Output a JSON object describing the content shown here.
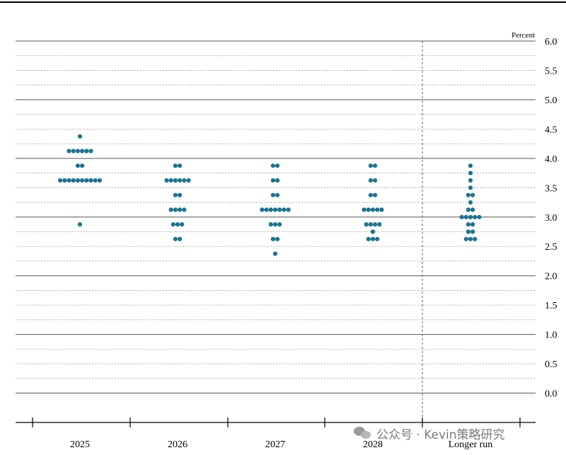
{
  "chart_data": {
    "type": "scatter",
    "unit_label": "Percent",
    "categories": [
      "2025",
      "2026",
      "2027",
      "2028",
      "Longer run"
    ],
    "ylim": [
      -0.5,
      6.0
    ],
    "yticks": [
      "6.0",
      "5.5",
      "5.0",
      "4.5",
      "4.0",
      "3.5",
      "3.0",
      "2.5",
      "2.0",
      "1.5",
      "1.0",
      "0.5",
      "0.0"
    ],
    "dots": [
      [
        [
          4.375,
          1
        ],
        [
          4.125,
          6
        ],
        [
          3.875,
          2
        ],
        [
          3.625,
          10
        ],
        [
          2.875,
          1
        ]
      ],
      [
        [
          3.875,
          2
        ],
        [
          3.625,
          6
        ],
        [
          3.375,
          2
        ],
        [
          3.125,
          4
        ],
        [
          2.875,
          3
        ],
        [
          2.625,
          2
        ]
      ],
      [
        [
          3.875,
          2
        ],
        [
          3.625,
          2
        ],
        [
          3.375,
          2
        ],
        [
          3.125,
          7
        ],
        [
          2.875,
          3
        ],
        [
          2.625,
          2
        ],
        [
          2.375,
          1
        ]
      ],
      [
        [
          3.875,
          2
        ],
        [
          3.625,
          2
        ],
        [
          3.375,
          2
        ],
        [
          3.125,
          5
        ],
        [
          2.875,
          4
        ],
        [
          2.75,
          1
        ],
        [
          2.625,
          3
        ]
      ],
      [
        [
          3.875,
          1
        ],
        [
          3.75,
          1
        ],
        [
          3.625,
          1
        ],
        [
          3.5,
          1
        ],
        [
          3.375,
          2
        ],
        [
          3.25,
          1
        ],
        [
          3.125,
          2
        ],
        [
          3.0,
          5
        ],
        [
          2.875,
          2
        ],
        [
          2.75,
          2
        ],
        [
          2.625,
          3
        ]
      ]
    ],
    "dot_color": "#1a7391",
    "grid": true
  },
  "watermark": {
    "text": "公众号 · Kevin策略研究"
  }
}
